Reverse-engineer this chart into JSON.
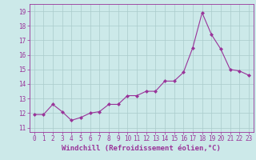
{
  "x": [
    0,
    1,
    2,
    3,
    4,
    5,
    6,
    7,
    8,
    9,
    10,
    11,
    12,
    13,
    14,
    15,
    16,
    17,
    18,
    19,
    20,
    21,
    22,
    23
  ],
  "y": [
    11.9,
    11.9,
    12.6,
    12.1,
    11.5,
    11.7,
    12.0,
    12.1,
    12.6,
    12.6,
    13.2,
    13.2,
    13.5,
    13.5,
    14.2,
    14.2,
    14.8,
    16.5,
    18.9,
    17.4,
    16.4,
    15.0,
    14.9,
    14.6
  ],
  "line_color": "#993399",
  "marker": "D",
  "marker_size": 2.0,
  "xlabel": "Windchill (Refroidissement éolien,°C)",
  "xlabel_fontsize": 6.5,
  "ylabel_ticks": [
    11,
    12,
    13,
    14,
    15,
    16,
    17,
    18,
    19
  ],
  "ylim": [
    10.7,
    19.5
  ],
  "xlim": [
    -0.5,
    23.5
  ],
  "bg_color": "#cce9e9",
  "grid_color": "#aacccc",
  "tick_label_color": "#993399",
  "tick_label_fontsize": 5.5,
  "linewidth": 0.8
}
